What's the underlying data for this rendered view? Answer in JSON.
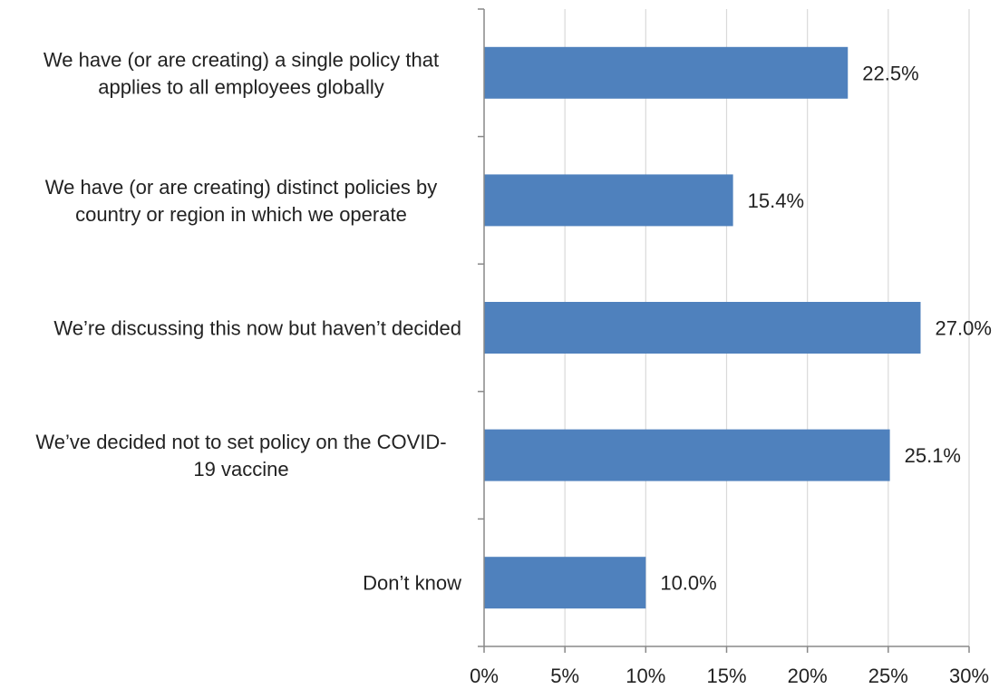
{
  "chart_data": {
    "type": "bar",
    "orientation": "horizontal",
    "categories": [
      [
        "We have (or are creating) a single policy that",
        "applies to all employees globally"
      ],
      [
        "We have (or are creating) distinct policies by",
        "country or region in which we operate"
      ],
      [
        "We’re discussing this now but haven’t decided"
      ],
      [
        "We’ve decided not to set policy on the COVID-",
        "19 vaccine"
      ],
      [
        "Don’t know"
      ]
    ],
    "values": [
      22.5,
      15.4,
      27.0,
      25.1,
      10.0
    ],
    "data_labels": [
      "22.5%",
      "15.4%",
      "27.0%",
      "25.1%",
      "10.0%"
    ],
    "x_ticks": [
      0,
      5,
      10,
      15,
      20,
      25,
      30
    ],
    "x_tick_labels": [
      "0%",
      "5%",
      "10%",
      "15%",
      "20%",
      "25%",
      "30%"
    ],
    "xlim": [
      0,
      30
    ],
    "grid": true,
    "legend": "none",
    "title": "",
    "xlabel": "",
    "ylabel": "",
    "colors": {
      "bar": "#4f81bd",
      "grid": "#d9d9d9",
      "axis": "#888888",
      "text": "#222222"
    }
  }
}
